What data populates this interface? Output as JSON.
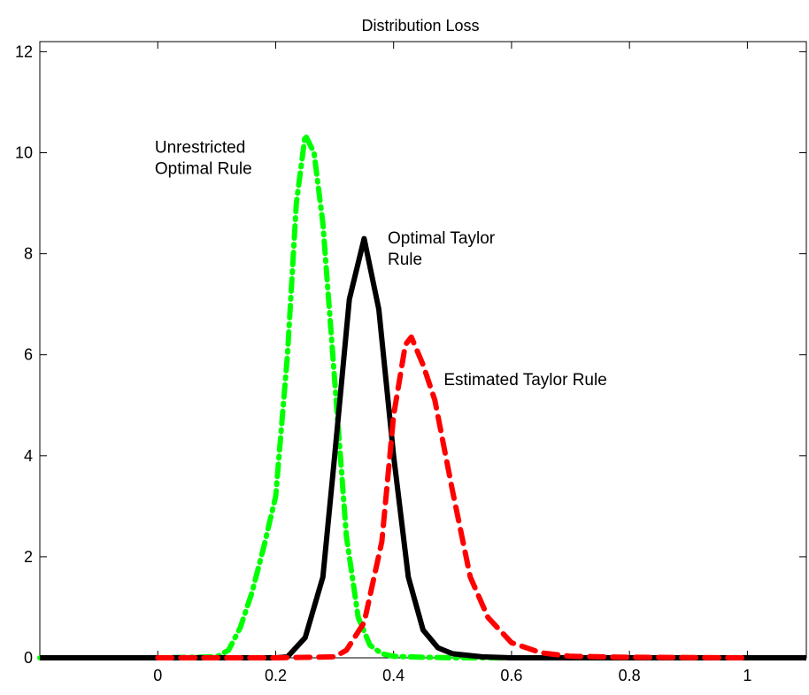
{
  "chart_data": {
    "type": "line",
    "title": "Distribution Loss",
    "xlabel": "",
    "ylabel": "",
    "xlim": [
      -0.2,
      1.1
    ],
    "ylim": [
      0,
      12.2
    ],
    "xticks": [
      0,
      0.2,
      0.4,
      0.6,
      0.8,
      1
    ],
    "xtick_labels": [
      "0",
      "0.2",
      "0.4",
      "0.6",
      "0.8",
      "1"
    ],
    "yticks": [
      0,
      2,
      4,
      6,
      8,
      10,
      12
    ],
    "ytick_labels": [
      "0",
      "2",
      "4",
      "6",
      "8",
      "10",
      "12"
    ],
    "grid": false,
    "legend": "none",
    "series": [
      {
        "key": "unrestricted",
        "color": "#00ff00",
        "style": "dash-dot",
        "x": [
          -0.2,
          0.0,
          0.1,
          0.12,
          0.14,
          0.16,
          0.18,
          0.2,
          0.22,
          0.235,
          0.25,
          0.265,
          0.28,
          0.3,
          0.32,
          0.34,
          0.36,
          0.38,
          0.4,
          0.45,
          0.5,
          0.6,
          0.7
        ],
        "y": [
          0,
          0,
          0.02,
          0.15,
          0.6,
          1.3,
          2.2,
          3.2,
          6.0,
          9.0,
          10.35,
          10.0,
          8.6,
          5.5,
          2.4,
          0.8,
          0.25,
          0.08,
          0.03,
          0.01,
          0,
          0,
          0
        ]
      },
      {
        "key": "optimal_taylor",
        "color": "#000000",
        "style": "solid",
        "x": [
          -0.2,
          0.2,
          0.22,
          0.25,
          0.28,
          0.3,
          0.325,
          0.35,
          0.375,
          0.4,
          0.425,
          0.45,
          0.475,
          0.5,
          0.55,
          0.6,
          0.8,
          1.1
        ],
        "y": [
          0,
          0,
          0.02,
          0.4,
          1.6,
          4.0,
          7.1,
          8.3,
          6.9,
          4.0,
          1.6,
          0.55,
          0.2,
          0.08,
          0.02,
          0,
          0,
          0
        ]
      },
      {
        "key": "estimated_taylor",
        "color": "#ff0000",
        "style": "dashed",
        "x": [
          0.0,
          0.2,
          0.3,
          0.32,
          0.35,
          0.38,
          0.4,
          0.42,
          0.43,
          0.45,
          0.47,
          0.5,
          0.53,
          0.56,
          0.6,
          0.65,
          0.7,
          0.8,
          1.0
        ],
        "y": [
          0,
          0,
          0.02,
          0.15,
          0.7,
          2.3,
          4.8,
          6.2,
          6.35,
          5.8,
          5.1,
          3.3,
          1.6,
          0.8,
          0.3,
          0.1,
          0.03,
          0.01,
          0
        ]
      }
    ],
    "annotations": [
      {
        "key": "unrestricted_label",
        "lines": [
          "Unrestricted",
          "Optimal Rule"
        ],
        "x": -0.005,
        "y": 10.0
      },
      {
        "key": "optimal_taylor_label",
        "lines": [
          "Optimal Taylor",
          "Rule"
        ],
        "x": 0.39,
        "y": 8.2
      },
      {
        "key": "estimated_taylor_label",
        "lines": [
          "Estimated Taylor Rule"
        ],
        "x": 0.485,
        "y": 5.4
      }
    ]
  }
}
